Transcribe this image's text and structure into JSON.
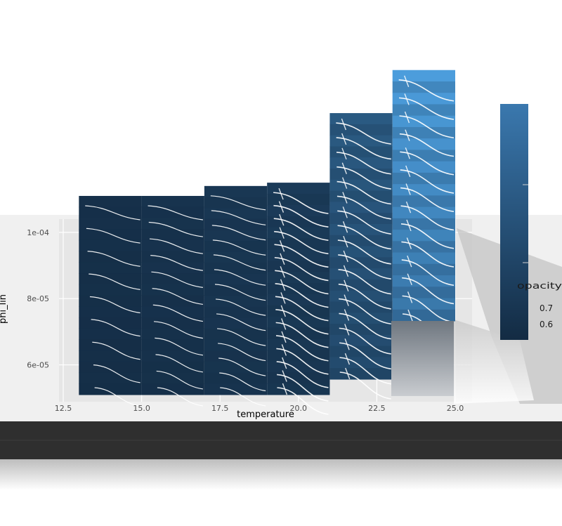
{
  "chart_data": {
    "type": "line",
    "title": "",
    "xlabel": "temperature",
    "ylabel": "phi_lin",
    "xlim": [
      12.5,
      25.0
    ],
    "ylim": [
      5.1e-05,
      0.000104
    ],
    "x_ticks": [
      "12.5",
      "15.0",
      "17.5",
      "20.0",
      "22.5",
      "25.0"
    ],
    "y_ticks": [
      {
        "label": "6e-05",
        "value": 6e-05
      },
      {
        "label": "8e-05",
        "value": 8e-05
      },
      {
        "label": "1e-04",
        "value": 0.0001
      }
    ],
    "grid": true,
    "legend": {
      "title": "opacity",
      "position": "right",
      "ticks": [
        "0.6",
        "0.7"
      ],
      "low_color": "#132B43",
      "high_color": "#56B1F7"
    },
    "panels": [
      {
        "x_start": 13.0,
        "x_end": 15.0,
        "top": 0.000111,
        "shade": 0.04,
        "curves": 9,
        "dense": false
      },
      {
        "x_start": 15.0,
        "x_end": 17.0,
        "top": 0.000111,
        "shade": 0.06,
        "curves": 12,
        "dense": false
      },
      {
        "x_start": 17.0,
        "x_end": 19.0,
        "top": 0.000114,
        "shade": 0.09,
        "curves": 14,
        "dense": false
      },
      {
        "x_start": 19.0,
        "x_end": 21.0,
        "top": 0.000115,
        "shade": 0.12,
        "curves": 16,
        "dense": true
      },
      {
        "x_start": 21.0,
        "x_end": 23.0,
        "top": 0.000136,
        "shade": 0.35,
        "curves": 18,
        "dense": true
      },
      {
        "x_start": 23.0,
        "x_end": 25.0,
        "top": 0.000149,
        "shade": 0.85,
        "curves": 14,
        "dense": true
      }
    ]
  }
}
